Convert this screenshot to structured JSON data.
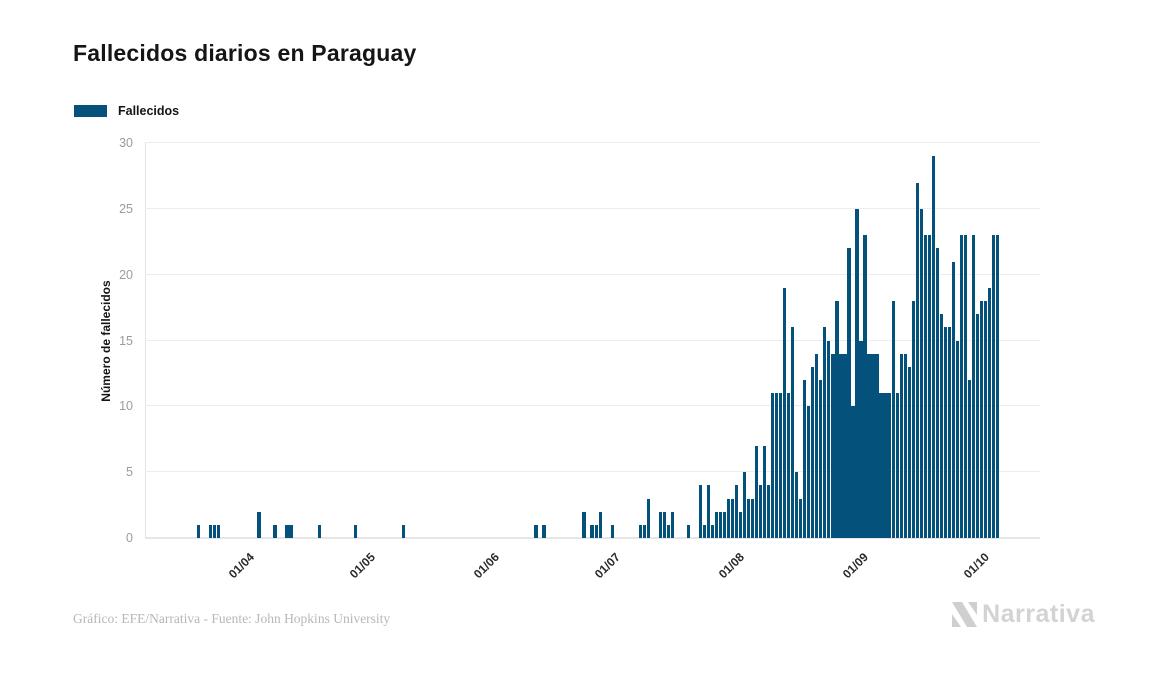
{
  "header": {
    "title": "Fallecidos diarios en Paraguay"
  },
  "legend": {
    "items": [
      {
        "label": "Fallecidos",
        "color": "#04527b"
      }
    ]
  },
  "chart_data": {
    "type": "bar",
    "title": "Fallecidos diarios en Paraguay",
    "xlabel": "",
    "ylabel": "Número de fallecidos",
    "series_name": "Fallecidos",
    "bar_color": "#04527b",
    "ylim": [
      0,
      30
    ],
    "y_ticks": [
      0,
      5,
      10,
      15,
      20,
      25,
      30
    ],
    "grid": "horizontal",
    "legend_position": "top-left",
    "x_ticks": [
      {
        "label": "01/04",
        "index": 25
      },
      {
        "label": "01/05",
        "index": 55
      },
      {
        "label": "01/06",
        "index": 86
      },
      {
        "label": "01/07",
        "index": 116
      },
      {
        "label": "01/08",
        "index": 147
      },
      {
        "label": "01/09",
        "index": 178
      },
      {
        "label": "01/10",
        "index": 208
      }
    ],
    "values": [
      0,
      0,
      0,
      0,
      0,
      0,
      0,
      0,
      0,
      0,
      0,
      0,
      0,
      1,
      0,
      0,
      1,
      1,
      1,
      0,
      0,
      0,
      0,
      0,
      0,
      0,
      0,
      0,
      2,
      0,
      0,
      0,
      1,
      0,
      0,
      1,
      1,
      0,
      0,
      0,
      0,
      0,
      0,
      1,
      0,
      0,
      0,
      0,
      0,
      0,
      0,
      0,
      1,
      0,
      0,
      0,
      0,
      0,
      0,
      0,
      0,
      0,
      0,
      0,
      1,
      0,
      0,
      0,
      0,
      0,
      0,
      0,
      0,
      0,
      0,
      0,
      0,
      0,
      0,
      0,
      0,
      0,
      0,
      0,
      0,
      0,
      0,
      0,
      0,
      0,
      0,
      0,
      0,
      0,
      0,
      0,
      0,
      1,
      0,
      1,
      0,
      0,
      0,
      0,
      0,
      0,
      0,
      0,
      0,
      2,
      0,
      1,
      1,
      2,
      0,
      0,
      1,
      0,
      0,
      0,
      0,
      0,
      0,
      1,
      1,
      3,
      0,
      0,
      2,
      2,
      1,
      2,
      0,
      0,
      0,
      1,
      0,
      0,
      4,
      1,
      4,
      1,
      2,
      2,
      2,
      3,
      3,
      4,
      2,
      5,
      3,
      3,
      7,
      4,
      7,
      4,
      11,
      11,
      11,
      19,
      11,
      16,
      5,
      3,
      12,
      10,
      13,
      14,
      12,
      16,
      15,
      14,
      18,
      14,
      14,
      22,
      10,
      25,
      15,
      23,
      14,
      14,
      14,
      11,
      11,
      11,
      18,
      11,
      14,
      14,
      13,
      18,
      27,
      25,
      23,
      23,
      29,
      22,
      17,
      16,
      16,
      21,
      15,
      23,
      23,
      12,
      23,
      17,
      18,
      18,
      19,
      23,
      23,
      0,
      0,
      0,
      0,
      0,
      0,
      0,
      0,
      0,
      0
    ]
  },
  "footer": {
    "credit": "Gráfico: EFE/Narrativa - Fuente: John Hopkins University",
    "brand": "Narrativa"
  }
}
